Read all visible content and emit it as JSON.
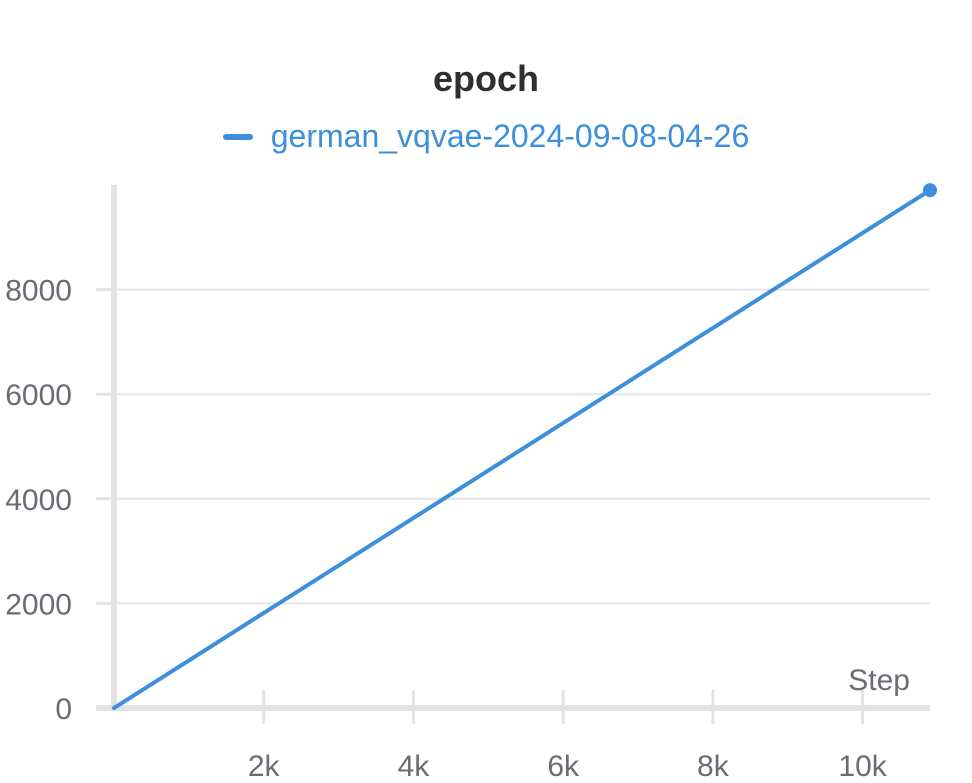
{
  "chart_data": {
    "type": "line",
    "title": "epoch",
    "xlabel": "Step",
    "ylabel": "",
    "xlim": [
      0,
      10900
    ],
    "ylim": [
      0,
      10000
    ],
    "x_ticks": [
      2000,
      4000,
      6000,
      8000,
      10000
    ],
    "x_tick_labels": [
      "2k",
      "4k",
      "6k",
      "8k",
      "10k"
    ],
    "y_ticks": [
      0,
      2000,
      4000,
      6000,
      8000
    ],
    "y_tick_labels": [
      "0",
      "2000",
      "4000",
      "6000",
      "8000"
    ],
    "grid": true,
    "legend": "top-center",
    "series": [
      {
        "name": "german_vqvae-2024-09-08-04-26",
        "color": "#3d8fdb",
        "x": [
          0,
          10900
        ],
        "y": [
          0,
          9900
        ]
      }
    ]
  }
}
